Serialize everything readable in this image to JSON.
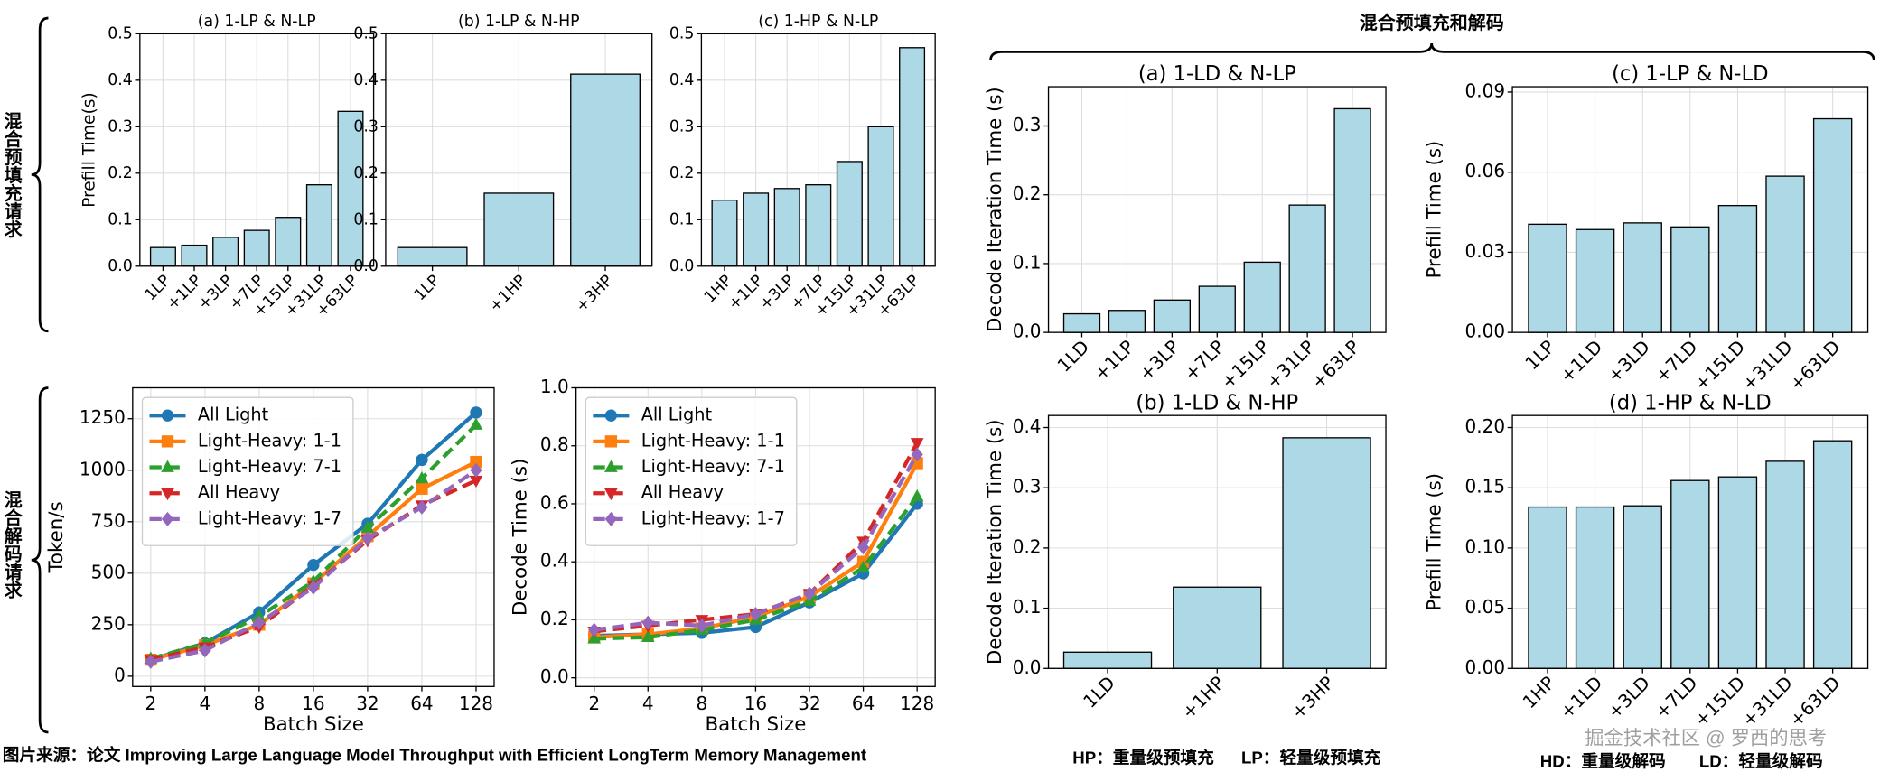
{
  "chart_data": [
    {
      "type": "bar",
      "title": "(a) 1-LP & N-LP",
      "ylabel": "Prefill Time(s)",
      "categories": [
        "1LP",
        "+1LP",
        "+3LP",
        "+7LP",
        "+15LP",
        "+31LP",
        "+63LP"
      ],
      "values": [
        0.04,
        0.045,
        0.062,
        0.077,
        0.105,
        0.175,
        0.333
      ],
      "color": "#add8e6",
      "ylim": [
        0,
        0.5
      ],
      "yticks": [
        {
          "value": 0,
          "label": "0.0"
        },
        0.1,
        0.2,
        0.3,
        0.4,
        0.5
      ],
      "grid": true
    },
    {
      "type": "bar",
      "title": "(b) 1-LP & N-HP",
      "categories": [
        "1LP",
        "+1HP",
        "+3HP"
      ],
      "values": [
        0.04,
        0.157,
        0.413
      ],
      "color": "#add8e6",
      "ylim": [
        0,
        0.5
      ],
      "yticks": [
        {
          "value": 0,
          "label": "0.0"
        },
        0.1,
        0.2,
        0.3,
        0.4,
        0.5
      ],
      "grid": true
    },
    {
      "type": "bar",
      "title": "(c) 1-HP & N-LP",
      "categories": [
        "1HP",
        "+1LP",
        "+3LP",
        "+7LP",
        "+15LP",
        "+31LP",
        "+63LP"
      ],
      "values": [
        0.142,
        0.157,
        0.167,
        0.175,
        0.225,
        0.3,
        0.47
      ],
      "color": "#add8e6",
      "ylim": [
        0,
        0.5
      ],
      "yticks": [
        {
          "value": 0,
          "label": "0.0"
        },
        0.1,
        0.2,
        0.3,
        0.4,
        0.5
      ],
      "grid": true
    },
    {
      "type": "line",
      "xlabel": "Batch Size",
      "ylabel": "Token/s",
      "categories": [
        "2",
        "4",
        "8",
        "16",
        "32",
        "64",
        "128"
      ],
      "ylim": [
        -50,
        1400
      ],
      "yticks": [
        0,
        250,
        500,
        750,
        1000,
        1250
      ],
      "grid": true,
      "legend": "upper left",
      "series": [
        {
          "name": "All Light",
          "color": "#1f77b4",
          "marker": "o",
          "linestyle": "solid",
          "values": [
            80,
            160,
            310,
            540,
            740,
            1050,
            1280
          ]
        },
        {
          "name": "Light-Heavy: 1-1",
          "color": "#ff7f0e",
          "marker": "s",
          "linestyle": "solid",
          "values": [
            80,
            150,
            250,
            450,
            680,
            910,
            1040
          ]
        },
        {
          "name": "Light-Heavy: 7-1",
          "color": "#2ca02c",
          "marker": "^",
          "linestyle": "dashed",
          "values": [
            85,
            160,
            290,
            460,
            720,
            960,
            1220
          ]
        },
        {
          "name": "All Heavy",
          "color": "#d62728",
          "marker": "v",
          "linestyle": "dashed",
          "values": [
            80,
            140,
            240,
            440,
            660,
            830,
            950
          ]
        },
        {
          "name": "Light-Heavy: 1-7",
          "color": "#9467bd",
          "marker": "D",
          "linestyle": "dashed",
          "values": [
            70,
            125,
            260,
            430,
            670,
            820,
            1000
          ]
        }
      ]
    },
    {
      "type": "line",
      "xlabel": "Batch Size",
      "ylabel": "Decode Time (s)",
      "categories": [
        "2",
        "4",
        "8",
        "16",
        "32",
        "64",
        "128"
      ],
      "ylim": [
        -0.03,
        1.0
      ],
      "yticks": [
        {
          "value": 0,
          "label": "0.0"
        },
        0.2,
        0.4,
        0.6,
        0.8,
        {
          "value": 1,
          "label": "1.0"
        }
      ],
      "grid": true,
      "legend": "upper left",
      "series": [
        {
          "name": "All Light",
          "color": "#1f77b4",
          "marker": "o",
          "linestyle": "solid",
          "values": [
            0.145,
            0.15,
            0.155,
            0.175,
            0.26,
            0.36,
            0.6
          ]
        },
        {
          "name": "Light-Heavy: 1-1",
          "color": "#ff7f0e",
          "marker": "s",
          "linestyle": "solid",
          "values": [
            0.14,
            0.15,
            0.17,
            0.21,
            0.28,
            0.4,
            0.74
          ]
        },
        {
          "name": "Light-Heavy: 7-1",
          "color": "#2ca02c",
          "marker": "^",
          "linestyle": "dashed",
          "values": [
            0.135,
            0.14,
            0.165,
            0.2,
            0.265,
            0.38,
            0.625
          ]
        },
        {
          "name": "All Heavy",
          "color": "#d62728",
          "marker": "v",
          "linestyle": "dashed",
          "values": [
            0.16,
            0.18,
            0.2,
            0.22,
            0.29,
            0.47,
            0.81
          ]
        },
        {
          "name": "Light-Heavy: 1-7",
          "color": "#9467bd",
          "marker": "D",
          "linestyle": "dashed",
          "values": [
            0.165,
            0.19,
            0.18,
            0.22,
            0.29,
            0.45,
            0.77
          ]
        }
      ]
    },
    {
      "type": "bar",
      "title": "(a) 1-LD & N-LP",
      "ylabel": "Decode Iteration Time (s)",
      "categories": [
        "1LD",
        "+1LP",
        "+3LP",
        "+7LP",
        "+15LP",
        "+31LP",
        "+63LP"
      ],
      "values": [
        0.027,
        0.032,
        0.047,
        0.067,
        0.102,
        0.185,
        0.325
      ],
      "color": "#add8e6",
      "ylim": [
        0,
        0.357
      ],
      "yticks": [
        {
          "value": 0,
          "label": "0.0"
        },
        0.1,
        0.2,
        0.3
      ],
      "grid": true
    },
    {
      "type": "bar",
      "title": "(c) 1-LP & N-LD",
      "ylabel": "Prefill Time (s)",
      "categories": [
        "1LP",
        "+1LD",
        "+3LD",
        "+7LD",
        "+15LD",
        "+31LD",
        "+63LD"
      ],
      "values": [
        0.0405,
        0.0385,
        0.041,
        0.0395,
        0.0475,
        0.0585,
        0.08
      ],
      "color": "#add8e6",
      "ylim": [
        0,
        0.092
      ],
      "yticks": [
        {
          "value": 0,
          "label": "0.00"
        },
        0.03,
        0.06,
        0.09
      ],
      "grid": true
    },
    {
      "type": "bar",
      "title": "(b) 1-LD & N-HP",
      "ylabel": "Decode Iteration Time (s)",
      "categories": [
        "1LD",
        "+1HP",
        "+3HP"
      ],
      "values": [
        0.027,
        0.135,
        0.383
      ],
      "color": "#add8e6",
      "ylim": [
        0,
        0.42
      ],
      "yticks": [
        {
          "value": 0,
          "label": "0.0"
        },
        0.1,
        0.2,
        0.3,
        0.4
      ],
      "grid": true
    },
    {
      "type": "bar",
      "title": "(d) 1-HP & N-LD",
      "ylabel": "Prefill Time (s)",
      "categories": [
        "1HP",
        "+1LD",
        "+3LD",
        "+7LD",
        "+15LD",
        "+31LD",
        "+63LD"
      ],
      "values": [
        0.134,
        0.134,
        0.135,
        0.156,
        0.159,
        0.172,
        0.189
      ],
      "color": "#add8e6",
      "ylim": [
        0,
        0.21
      ],
      "yticks": [
        {
          "value": 0,
          "label": "0.00"
        },
        0.05,
        {
          "value": 0.1,
          "label": "0.10"
        },
        0.15,
        {
          "value": 0.2,
          "label": "0.20"
        }
      ],
      "grid": true
    }
  ],
  "group_labels": {
    "prefill": "混合预填充请求",
    "decode": "混合解码请求",
    "mixed": "混合预填充和解码"
  },
  "footer": {
    "source": "图片来源：论文 Improving Large Language Model Throughput with Efficient LongTerm Memory Management",
    "hp": "HP：重量级预填充",
    "lp": "LP：轻量级预填充",
    "hd": "HD：重量级解码",
    "ld": "LD：轻量级解码"
  },
  "watermark": "掘金技术社区 @ 罗西的思考"
}
